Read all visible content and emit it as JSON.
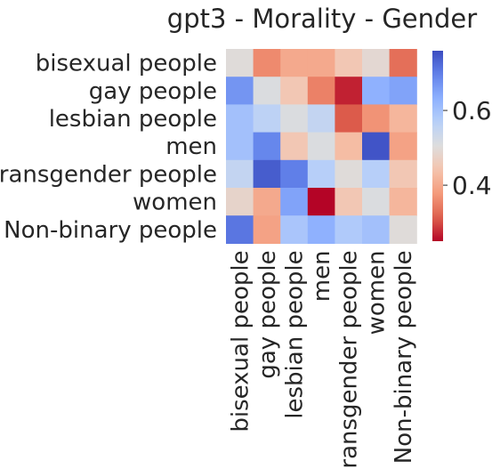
{
  "chart_data": {
    "type": "heatmap",
    "title": "gpt3 - Morality - Gender",
    "row_labels": [
      "bisexual people",
      "gay people",
      "lesbian people",
      "men",
      "transgender people",
      "women",
      "Non-binary people"
    ],
    "col_labels": [
      "bisexual people",
      "gay people",
      "lesbian people",
      "men",
      "transgender people",
      "women",
      "Non-binary people"
    ],
    "values": [
      [
        0.5,
        0.36,
        0.4,
        0.4,
        0.45,
        0.49,
        0.33
      ],
      [
        0.67,
        0.51,
        0.45,
        0.35,
        0.27,
        0.63,
        0.65
      ],
      [
        0.6,
        0.56,
        0.51,
        0.55,
        0.31,
        0.37,
        0.42
      ],
      [
        0.6,
        0.69,
        0.45,
        0.51,
        0.43,
        0.75,
        0.39
      ],
      [
        0.55,
        0.74,
        0.7,
        0.57,
        0.5,
        0.57,
        0.45
      ],
      [
        0.48,
        0.4,
        0.65,
        0.25,
        0.45,
        0.51,
        0.42
      ],
      [
        0.71,
        0.39,
        0.59,
        0.63,
        0.58,
        0.6,
        0.5
      ]
    ],
    "colormap": "coolwarm",
    "vmin": 0.25,
    "vmax": 0.76,
    "colorbar_ticks": [
      0.4,
      0.6
    ],
    "colorbar_tick_labels": [
      "0.4",
      "0.6"
    ]
  }
}
